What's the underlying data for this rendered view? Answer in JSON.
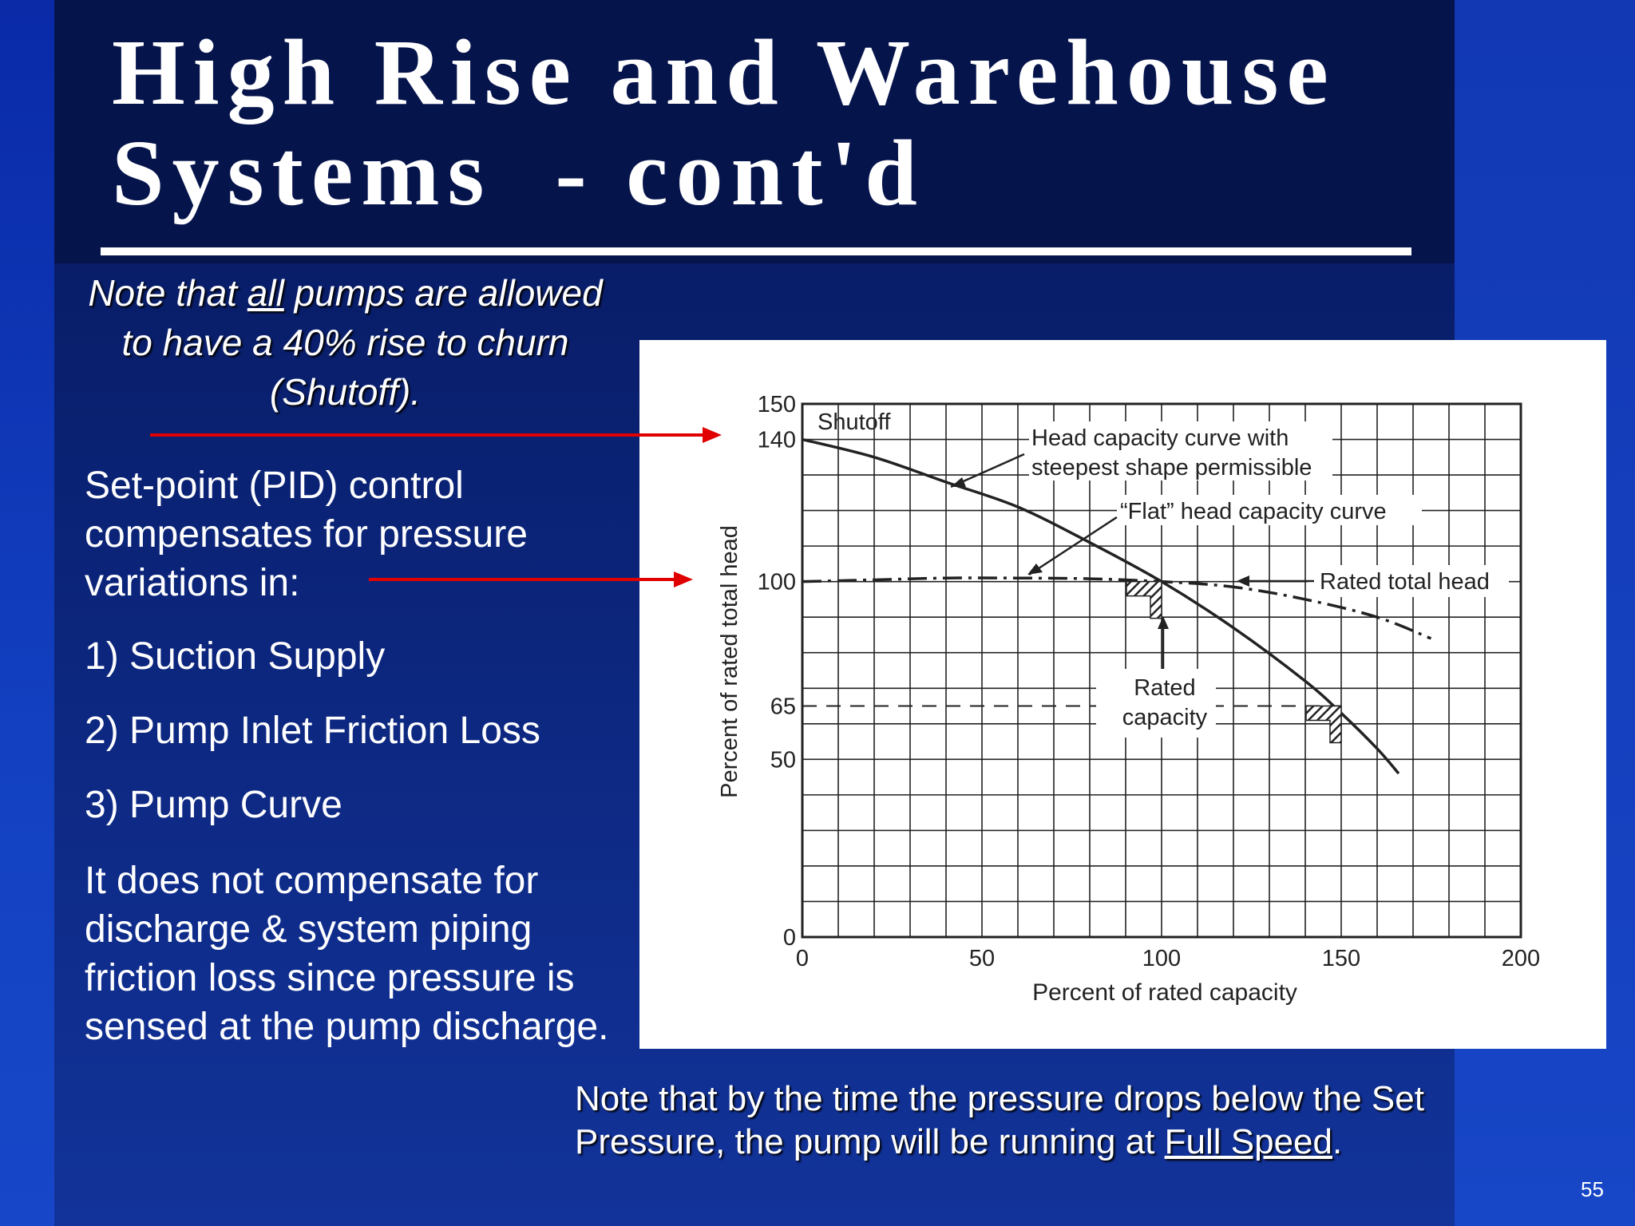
{
  "slide": {
    "title_line1": "High Rise and Warehouse",
    "title_line2": "Systems  - cont'd",
    "note_top": {
      "before": "Note that ",
      "underlined": "all",
      "after": " pumps are allowed to have a 40% rise to churn (Shutoff)."
    },
    "body": {
      "setpoint": "Set-point (PID) control compensates for pressure variations in:",
      "item1": "1) Suction Supply",
      "item2": "2) Pump Inlet Friction Loss",
      "item3": "3)  Pump Curve",
      "not_compensate": "It does not compensate for discharge & system piping friction loss since pressure is sensed at the pump discharge."
    },
    "note_bottom": {
      "before": "Note that by the time the pressure drops below the Set Pressure, the pump will be running at ",
      "underlined": "Full Speed",
      "after": "."
    },
    "page_number": "55",
    "colors": {
      "arrow": "#e00000",
      "background": "#0b2478",
      "text": "#ffffff"
    }
  },
  "chart_data": {
    "type": "line",
    "xlabel": "Percent of rated capacity",
    "ylabel": "Percent of rated total head",
    "xlim": [
      0,
      200
    ],
    "ylim": [
      0,
      150
    ],
    "x_ticks": [
      0,
      50,
      100,
      150,
      200
    ],
    "y_ticks": [
      0,
      50,
      65,
      100,
      140,
      150
    ],
    "grid": true,
    "series": [
      {
        "style": "solid",
        "x": [
          0,
          20,
          40,
          60,
          80,
          100,
          120,
          140,
          150,
          160,
          166
        ],
        "y": [
          140,
          135,
          128,
          121,
          111,
          100,
          87,
          72,
          63,
          53,
          46
        ]
      },
      {
        "style": "dash-dot",
        "x": [
          0,
          20,
          40,
          60,
          80,
          100,
          120,
          140,
          160,
          175
        ],
        "y": [
          100,
          100.5,
          101,
          101,
          100.8,
          100,
          98.5,
          95,
          90,
          84
        ]
      },
      {
        "style": "dashed",
        "x": [
          0,
          150
        ],
        "y": [
          65,
          65
        ]
      }
    ],
    "annotations": {
      "shutoff": "Shutoff",
      "steepest_line1": "Head capacity curve with",
      "steepest_line2": "steepest shape permissible",
      "flat": "“Flat” head capacity curve",
      "rated_head": "Rated total head",
      "rated_capacity_line1": "Rated",
      "rated_capacity_line2": "capacity"
    }
  }
}
